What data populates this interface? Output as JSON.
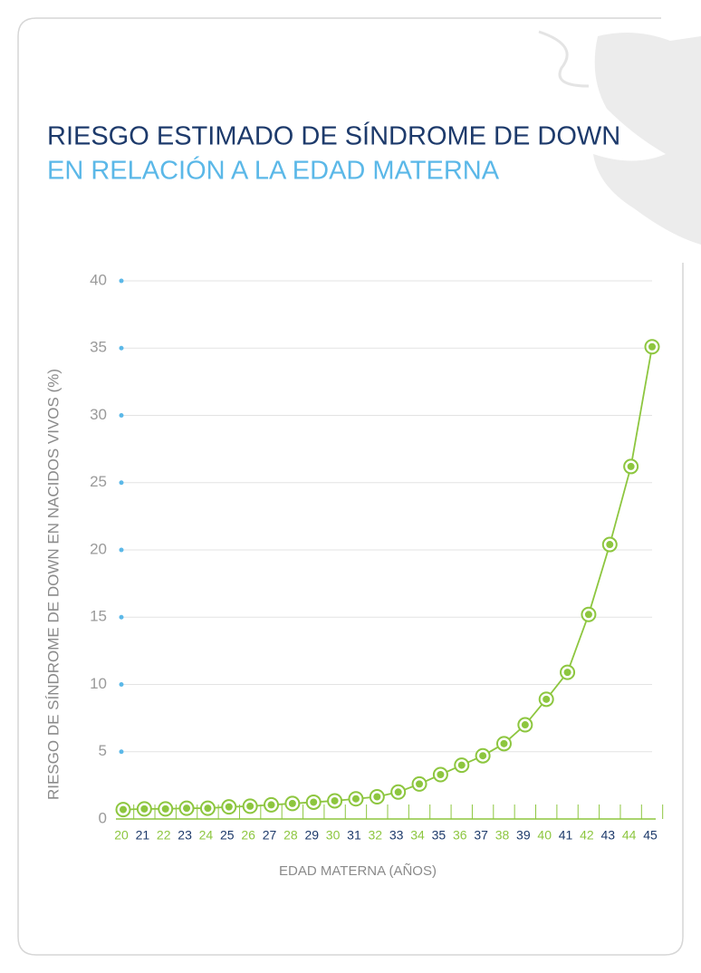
{
  "chart_data": {
    "type": "line",
    "title": "RIESGO ESTIMADO DE SÍNDROME DE DOWN",
    "subtitle": "EN RELACIÓN A LA EDAD MATERNA",
    "x_label": "EDAD MATERNA (AÑOS)",
    "y_label": "RIESGO DE SÍNDROME DE DOWN EN NACIDOS VIVOS (%)",
    "categories": [
      "20",
      "21",
      "22",
      "23",
      "24",
      "25",
      "26",
      "27",
      "28",
      "29",
      "30",
      "31",
      "32",
      "33",
      "34",
      "35",
      "36",
      "37",
      "38",
      "39",
      "40",
      "41",
      "42",
      "43",
      "44",
      "45"
    ],
    "values": [
      0.7,
      0.75,
      0.75,
      0.8,
      0.8,
      0.9,
      0.95,
      1.05,
      1.15,
      1.25,
      1.35,
      1.5,
      1.65,
      2.0,
      2.6,
      3.3,
      4.0,
      4.7,
      5.6,
      7.0,
      8.9,
      10.9,
      15.2,
      20.4,
      26.2,
      35.1
    ],
    "color": "#8dc63f",
    "category_label_colors": [
      "#8dc63f",
      "#1d3a6b"
    ],
    "ylim": [
      0,
      40
    ],
    "yticks": [
      0,
      5,
      10,
      15,
      20,
      25,
      30,
      35,
      40
    ],
    "grid": true
  }
}
